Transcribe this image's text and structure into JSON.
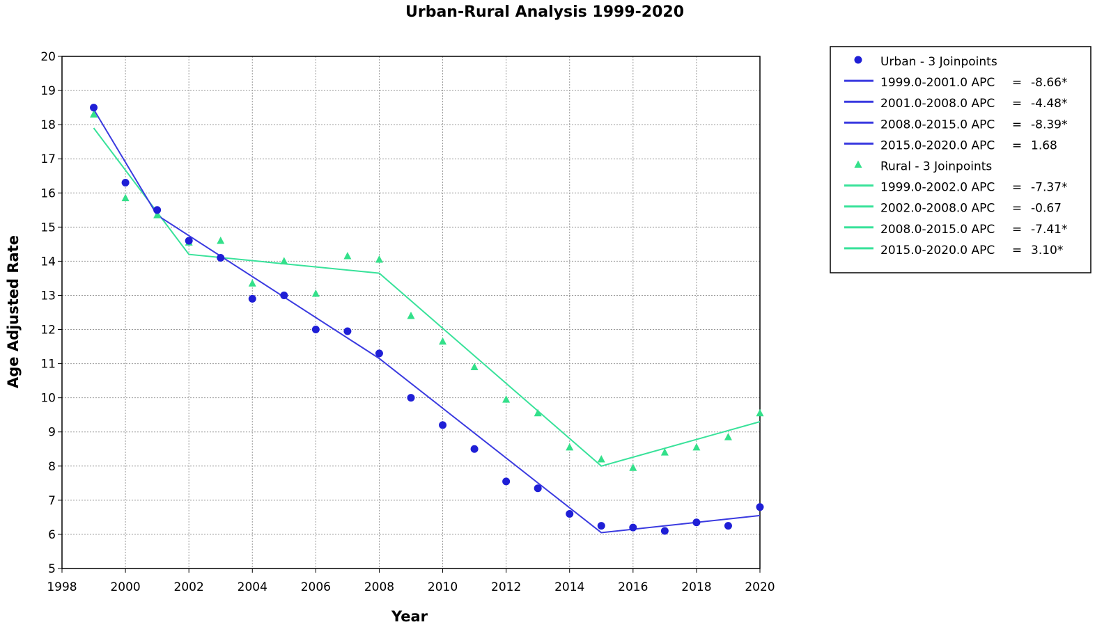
{
  "chart_data": {
    "type": "line",
    "title": "Urban-Rural Analysis 1999-2020",
    "xlabel": "Year",
    "ylabel": "Age Adjusted Rate",
    "xlim": [
      1998,
      2020
    ],
    "ylim": [
      5,
      20
    ],
    "x_ticks": [
      1998,
      2000,
      2002,
      2004,
      2006,
      2008,
      2010,
      2012,
      2014,
      2016,
      2018,
      2020
    ],
    "y_ticks": [
      5,
      6,
      7,
      8,
      9,
      10,
      11,
      12,
      13,
      14,
      15,
      16,
      17,
      18,
      19,
      20
    ],
    "grid": true,
    "legend_position": "right",
    "colors": {
      "urban": "#1f1fd6",
      "urban_line": "#3a3ae0",
      "rural": "#33e08a",
      "rural_line": "#38e29a"
    },
    "series": [
      {
        "name": "Urban - 3 Joinpoints",
        "marker": "circle",
        "x": [
          1999,
          2000,
          2001,
          2002,
          2003,
          2004,
          2005,
          2006,
          2007,
          2008,
          2009,
          2010,
          2011,
          2012,
          2013,
          2014,
          2015,
          2016,
          2017,
          2018,
          2019,
          2020
        ],
        "y": [
          18.5,
          16.3,
          15.5,
          14.6,
          14.1,
          12.9,
          13.0,
          12.0,
          11.95,
          11.3,
          10.0,
          9.2,
          8.5,
          7.55,
          7.35,
          6.6,
          6.25,
          6.2,
          6.1,
          6.35,
          6.25,
          6.8
        ],
        "fit": {
          "x": [
            1999,
            2001,
            2008,
            2015,
            2020
          ],
          "y": [
            18.45,
            15.35,
            11.15,
            6.05,
            6.55
          ]
        },
        "segments": [
          {
            "label": "1999.0-2001.0 APC",
            "value": "-8.66*"
          },
          {
            "label": "2001.0-2008.0 APC",
            "value": "-4.48*"
          },
          {
            "label": "2008.0-2015.0 APC",
            "value": "-8.39*"
          },
          {
            "label": "2015.0-2020.0 APC",
            "value": "1.68"
          }
        ]
      },
      {
        "name": "Rural - 3 Joinpoints",
        "marker": "triangle",
        "x": [
          1999,
          2000,
          2001,
          2002,
          2003,
          2004,
          2005,
          2006,
          2007,
          2008,
          2009,
          2010,
          2011,
          2012,
          2013,
          2014,
          2015,
          2016,
          2017,
          2018,
          2019,
          2020
        ],
        "y": [
          18.3,
          15.85,
          15.35,
          14.55,
          14.6,
          13.35,
          14.0,
          13.05,
          14.15,
          14.05,
          12.4,
          11.65,
          10.9,
          9.95,
          9.55,
          8.55,
          8.2,
          7.95,
          8.4,
          8.55,
          8.85,
          9.55
        ],
        "fit": {
          "x": [
            1999,
            2002,
            2008,
            2015,
            2020
          ],
          "y": [
            17.9,
            14.2,
            13.65,
            8.0,
            9.3
          ]
        },
        "segments": [
          {
            "label": "1999.0-2002.0 APC",
            "value": "-7.37*"
          },
          {
            "label": "2002.0-2008.0 APC",
            "value": "-0.67"
          },
          {
            "label": "2008.0-2015.0 APC",
            "value": "-7.41*"
          },
          {
            "label": "2015.0-2020.0 APC",
            "value": "3.10*"
          }
        ]
      }
    ]
  }
}
